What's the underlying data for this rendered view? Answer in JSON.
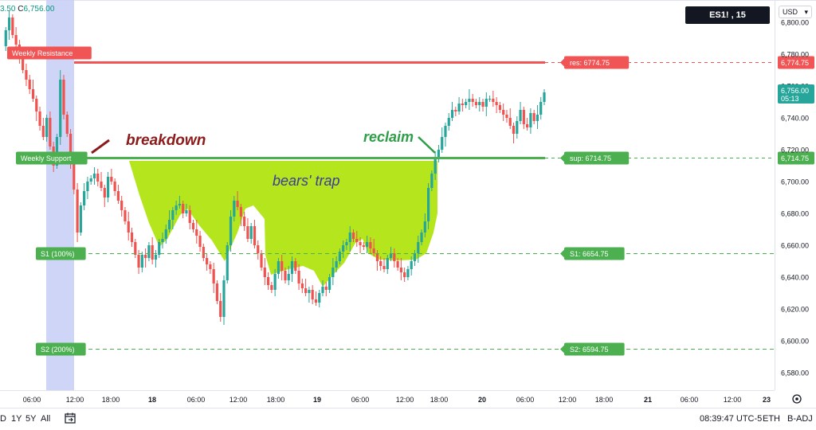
{
  "header": {
    "ohlc_prefix": "3.50",
    "close_label": "C",
    "close_value": "6,756.00",
    "symbol": "ES1! , 15",
    "currency": "USD"
  },
  "bottom_bar": {
    "ranges": [
      "D",
      "1Y",
      "5Y",
      "All"
    ],
    "time": "08:39:47 UTC-5",
    "session": "ETH",
    "adjust": "B-ADJ"
  },
  "colors": {
    "up": "#26a69a",
    "down": "#ef5350",
    "resistance": "#f05454",
    "support": "#4caf50",
    "trap_fill": "#b5e61d",
    "breakdown_text": "#8b1a1a",
    "reclaim_text": "#2e9e48",
    "trap_text": "#3b3b9e",
    "highlight_band": "#c5cef5",
    "last_price": "#26a69a"
  },
  "chart_data": {
    "type": "candlestick",
    "title": "",
    "xlabel": "",
    "ylabel": "",
    "ylim": [
      6570,
      6810
    ],
    "y_ticks": [
      "6,580.00",
      "6,600.00",
      "6,620.00",
      "6,640.00",
      "6,660.00",
      "6,680.00",
      "6,700.00",
      "6,720.00",
      "6,740.00",
      "6,760.00",
      "6,780.00",
      "6,800.00"
    ],
    "y_tick_values": [
      6580,
      6600,
      6620,
      6640,
      6660,
      6680,
      6700,
      6720,
      6740,
      6760,
      6780,
      6800
    ],
    "x_ticks": [
      "06:00",
      "12:00",
      "18:00",
      "18",
      "06:00",
      "12:00",
      "18:00",
      "19",
      "06:00",
      "12:00",
      "18:00",
      "20",
      "06:00",
      "12:00",
      "18:00",
      "21",
      "06:00",
      "12:00",
      "23"
    ],
    "levels": [
      {
        "name": "res",
        "label": "res: 6774.75",
        "axis_label": "6,774.75",
        "value": 6774.75,
        "style": "solid",
        "color": "#f05454",
        "left_label": "Weekly Resistance"
      },
      {
        "name": "sup",
        "label": "sup: 6714.75",
        "axis_label": "6,714.75",
        "value": 6714.75,
        "style": "solid",
        "color": "#4caf50",
        "left_label": "Weekly Support"
      },
      {
        "name": "S1",
        "label": "S1: 6654.75",
        "value": 6654.75,
        "style": "dashed",
        "color": "#4caf50",
        "left_label": "S1 (100%)"
      },
      {
        "name": "S2",
        "label": "S2: 6594.75",
        "value": 6594.75,
        "style": "dashed",
        "color": "#4caf50",
        "left_label": "S2 (200%)"
      }
    ],
    "last_price": {
      "value": 6756.0,
      "label": "6,756.00",
      "countdown": "05:13"
    },
    "annotations": [
      {
        "text": "breakdown",
        "kind": "label"
      },
      {
        "text": "reclaim",
        "kind": "label"
      },
      {
        "text": "bears' trap",
        "kind": "label"
      }
    ],
    "price_path": [
      6785,
      6795,
      6803,
      6792,
      6786,
      6779,
      6770,
      6764,
      6758,
      6752,
      6744,
      6735,
      6728,
      6740,
      6722,
      6710,
      6728,
      6764,
      6742,
      6730,
      6712,
      6695,
      6668,
      6685,
      6694,
      6700,
      6702,
      6705,
      6700,
      6696,
      6690,
      6703,
      6700,
      6694,
      6688,
      6682,
      6675,
      6668,
      6662,
      6654,
      6646,
      6654,
      6652,
      6660,
      6651,
      6654,
      6662,
      6664,
      6670,
      6676,
      6682,
      6685,
      6686,
      6680,
      6682,
      6674,
      6670,
      6666,
      6659,
      6652,
      6648,
      6645,
      6636,
      6625,
      6615,
      6638,
      6660,
      6678,
      6688,
      6684,
      6678,
      6672,
      6664,
      6672,
      6660,
      6655,
      6646,
      6640,
      6635,
      6632,
      6642,
      6650,
      6644,
      6638,
      6642,
      6650,
      6644,
      6636,
      6633,
      6630,
      6632,
      6626,
      6624,
      6630,
      6634,
      6632,
      6640,
      6646,
      6650,
      6656,
      6660,
      6662,
      6668,
      6664,
      6662,
      6660,
      6659,
      6662,
      6658,
      6655,
      6650,
      6647,
      6645,
      6652,
      6655,
      6650,
      6646,
      6643,
      6640,
      6645,
      6650,
      6655,
      6662,
      6668,
      6675,
      6696,
      6705,
      6715,
      6720,
      6728,
      6735,
      6740,
      6745,
      6744,
      6749,
      6748,
      6750,
      6752,
      6750,
      6748,
      6750,
      6747,
      6752,
      6752,
      6750,
      6748,
      6745,
      6742,
      6740,
      6735,
      6730,
      6738,
      6745,
      6736,
      6734,
      6743,
      6738,
      6742,
      6750,
      6756
    ]
  }
}
